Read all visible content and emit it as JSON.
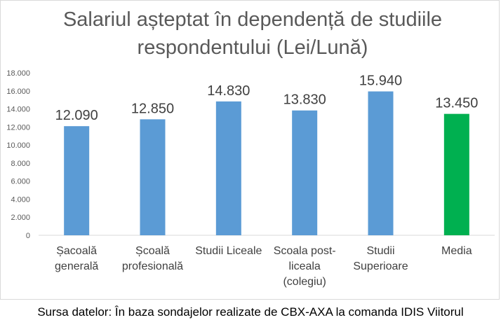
{
  "chart_data": {
    "type": "bar",
    "title": "Salariul așteptat în dependență de studiile respondentului (Lei/Lună)",
    "categories": [
      "Șacoală generală",
      "Școală profesională",
      "Studii Liceale",
      "Scoala post-liceala (colegiu)",
      "Studii Superioare",
      "Media"
    ],
    "values": [
      12090,
      12850,
      14830,
      13830,
      15940,
      13450
    ],
    "value_labels": [
      "12.090",
      "12.850",
      "14.830",
      "13.830",
      "15.940",
      "13.450"
    ],
    "colors": [
      "#5b9bd5",
      "#5b9bd5",
      "#5b9bd5",
      "#5b9bd5",
      "#5b9bd5",
      "#00b050"
    ],
    "ylim": [
      0,
      18000
    ],
    "yticks": [
      0,
      {
        "value": 2000,
        "label": "2.000"
      },
      {
        "value": 4000,
        "label": "4.000"
      },
      {
        "value": 6000,
        "label": "6.000"
      },
      {
        "value": 8000,
        "label": "8.000"
      },
      {
        "value": 10000,
        "label": "10.000"
      },
      {
        "value": 12000,
        "label": "12.000"
      },
      {
        "value": 14000,
        "label": "14.000"
      },
      {
        "value": 16000,
        "label": "16.000"
      },
      {
        "value": 18000,
        "label": "18.000"
      }
    ],
    "grid": false,
    "source": "Sursa datelor: În baza sondajelor realizate de CBX-AXA la comanda IDIS Viitorul"
  }
}
